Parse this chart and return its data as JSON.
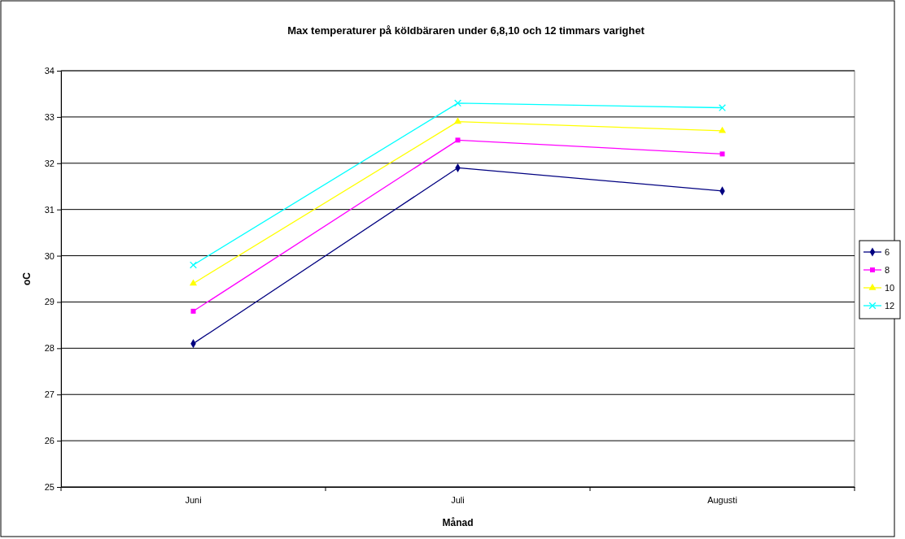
{
  "chart_data": {
    "type": "line",
    "title": "Max temperaturer på köldbäraren under 6,8,10 och 12 timmars varighet",
    "xlabel": "Månad",
    "ylabel": "oC",
    "categories": [
      "Juni",
      "Juli",
      "Augusti"
    ],
    "series": [
      {
        "name": "6",
        "color": "#000080",
        "marker": "diamond",
        "values": [
          28.1,
          31.9,
          31.4
        ]
      },
      {
        "name": "8",
        "color": "#ff00ff",
        "marker": "square",
        "values": [
          28.8,
          32.5,
          32.2
        ]
      },
      {
        "name": "10",
        "color": "#ffff00",
        "marker": "triangle",
        "values": [
          29.4,
          32.9,
          32.7
        ]
      },
      {
        "name": "12",
        "color": "#00ffff",
        "marker": "cross",
        "values": [
          29.8,
          33.3,
          33.2
        ]
      }
    ],
    "ylim": [
      25,
      34
    ],
    "yticks": [
      25,
      26,
      27,
      28,
      29,
      30,
      31,
      32,
      33,
      34
    ],
    "grid": "y",
    "legend": "right",
    "line_style": "solid"
  }
}
